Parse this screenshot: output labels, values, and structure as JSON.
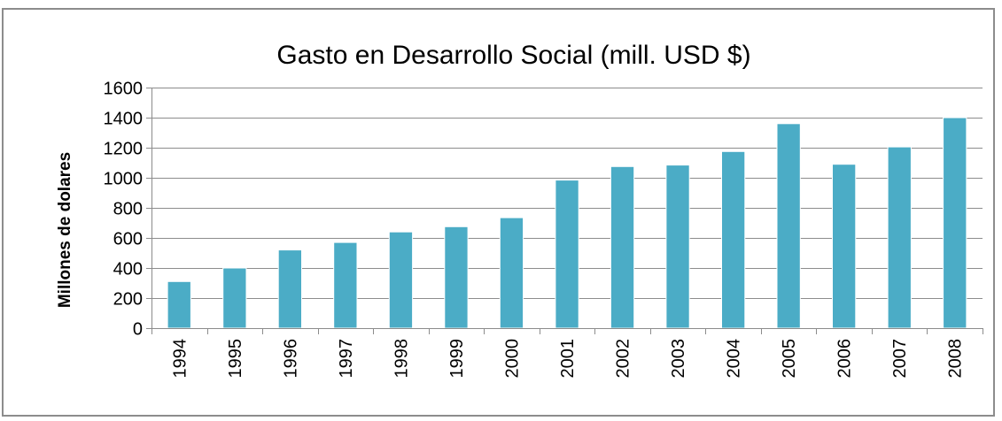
{
  "chart_data": {
    "type": "bar",
    "title": "Gasto en Desarrollo Social (mill. USD $)",
    "xlabel": "",
    "ylabel": "Millones de dolares",
    "categories": [
      "1994",
      "1995",
      "1996",
      "1997",
      "1998",
      "1999",
      "2000",
      "2001",
      "2002",
      "2003",
      "2004",
      "2005",
      "2006",
      "2007",
      "2008"
    ],
    "values": [
      310,
      400,
      520,
      570,
      640,
      675,
      735,
      985,
      1075,
      1085,
      1175,
      1360,
      1090,
      1205,
      1400
    ],
    "ylim": [
      0,
      1600
    ],
    "yticks": [
      0,
      200,
      400,
      600,
      800,
      1000,
      1200,
      1400,
      1600
    ],
    "grid": true,
    "legend": "none",
    "bar_color": "#4bacc6"
  }
}
